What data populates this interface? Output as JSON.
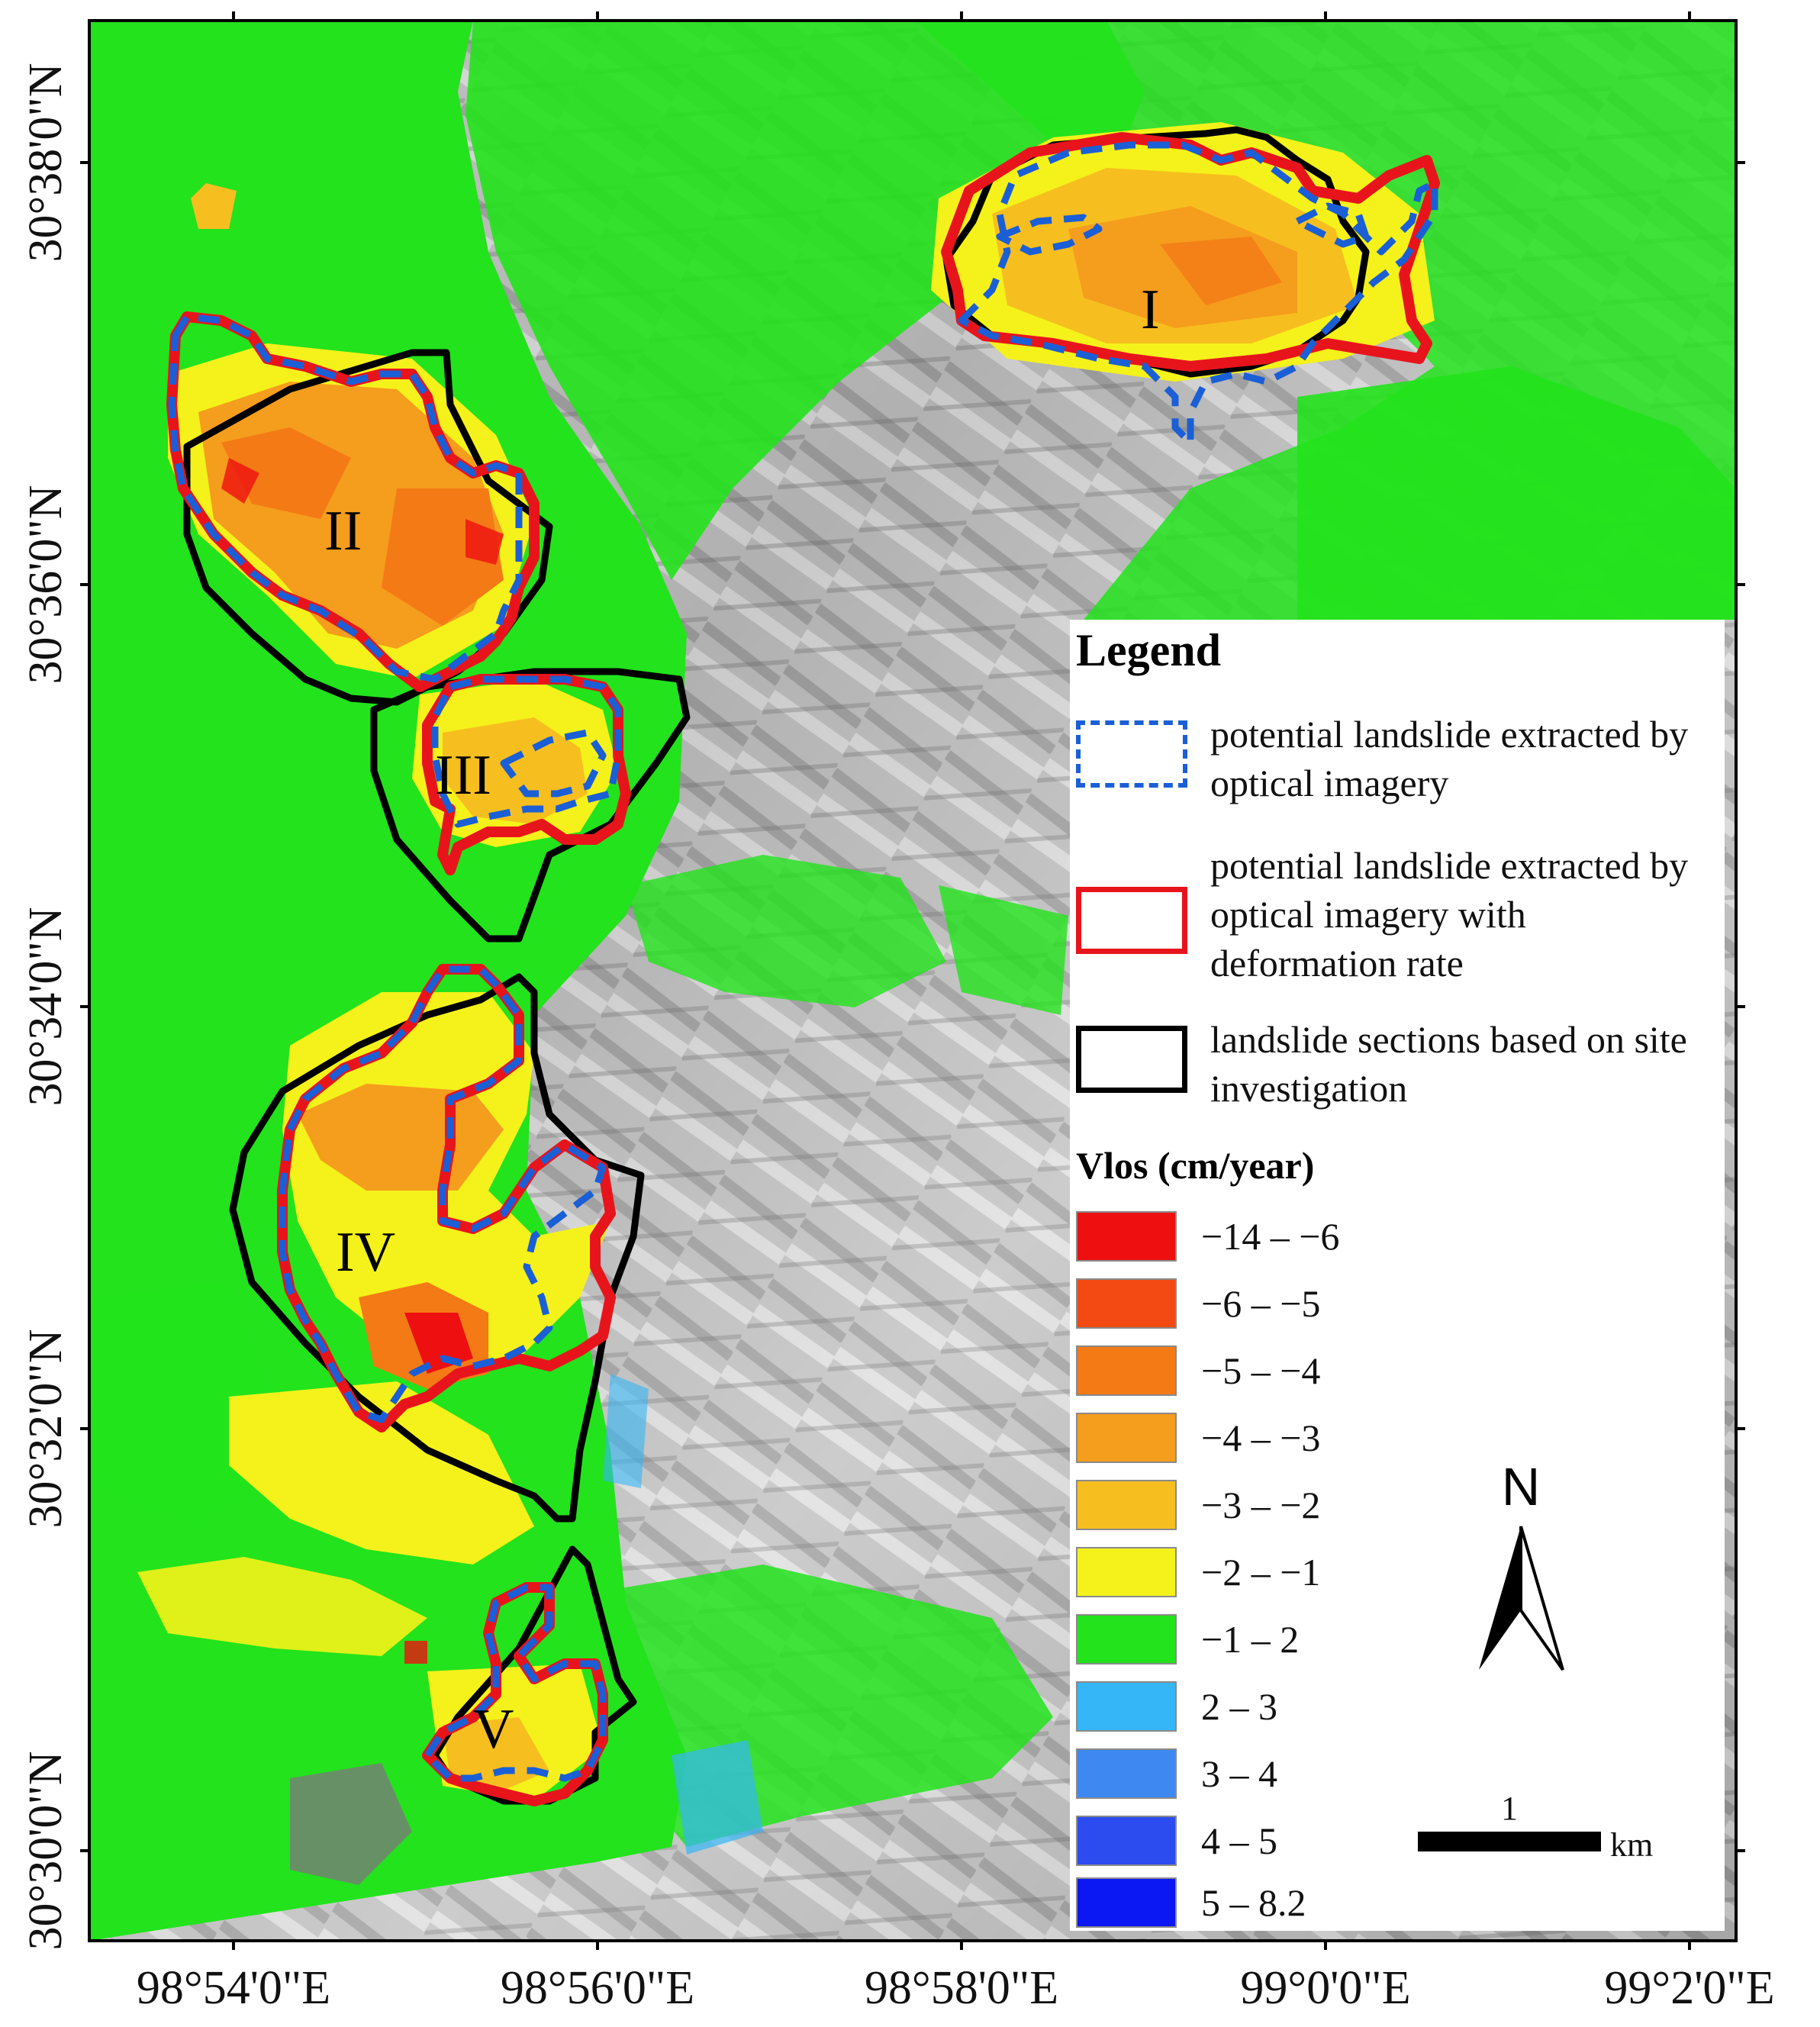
{
  "map": {
    "lat_ticks": [
      "30°38'0\"N",
      "30°36'0\"N",
      "30°34'0\"N",
      "30°32'0\"N",
      "30°30'0\"N"
    ],
    "lon_ticks": [
      "98°54'0\"E",
      "98°56'0\"E",
      "98°58'0\"E",
      "99°0'0\"E",
      "99°2'0\"E"
    ],
    "region_labels": [
      "I",
      "II",
      "III",
      "IV",
      "V"
    ]
  },
  "legend": {
    "title": "Legend",
    "items": [
      {
        "label": "potential landslide extracted by optical imagery",
        "stroke": "#1a5fd6",
        "style": "dashed"
      },
      {
        "label": "potential landslide extracted by optical imagery with deformation rate",
        "stroke": "#e8141c",
        "style": "solid"
      },
      {
        "label": "landslide sections based on site investigation",
        "stroke": "#000000",
        "style": "solid"
      }
    ],
    "scale_title": "Vlos (cm/year)",
    "classes": [
      {
        "label": "−14 – −6",
        "color": "#ee1010"
      },
      {
        "label": "−6 – −5",
        "color": "#f24a12"
      },
      {
        "label": "−5 – −4",
        "color": "#f47a16"
      },
      {
        "label": "−4 – −3",
        "color": "#f59d1d"
      },
      {
        "label": "−3 – −2",
        "color": "#f7be20"
      },
      {
        "label": "−2 – −1",
        "color": "#f4f21a"
      },
      {
        "label": "−1 – 2",
        "color": "#22e31c"
      },
      {
        "label": "2 – 3",
        "color": "#35b6f7"
      },
      {
        "label": "3 – 4",
        "color": "#3e88f2"
      },
      {
        "label": "4 – 5",
        "color": "#2d4cf0"
      },
      {
        "label": "5 – 8.2",
        "color": "#0b18f3"
      }
    ]
  },
  "north_arrow": {
    "letter": "N"
  },
  "scale_bar": {
    "value": "1",
    "unit": "km"
  },
  "colors": {
    "blue_dash": "#1a5fd6",
    "red_outline": "#e8141c",
    "black_outline": "#000000"
  }
}
